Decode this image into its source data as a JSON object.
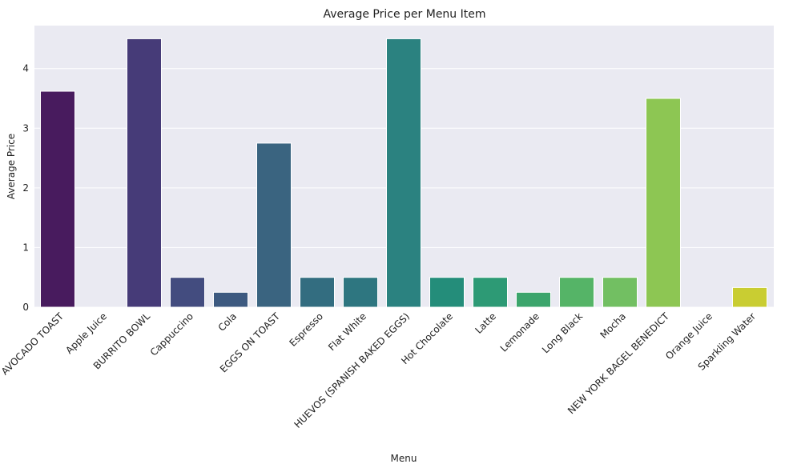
{
  "chart_data": {
    "type": "bar",
    "title": "Average Price per Menu Item",
    "xlabel": "Menu",
    "ylabel": "Average Price",
    "ylim": [
      0,
      4.72
    ],
    "yticks": [
      "0",
      "1",
      "2",
      "3",
      "4"
    ],
    "grid": true,
    "categories": [
      "AVOCADO TOAST",
      "Apple Juice",
      "BURRITO BOWL",
      "Cappuccino",
      "Cola",
      "EGGS ON TOAST",
      "Espresso",
      "Flat White",
      "HUEVOS (SPANISH BAKED EGGS)",
      "Hot Chocolate",
      "Latte",
      "Lemonade",
      "Long Black",
      "Mocha",
      "NEW YORK BAGEL BENEDICT",
      "Orange Juice",
      "Sparkling Water"
    ],
    "values": [
      3.62,
      0,
      4.5,
      0.5,
      0.25,
      2.75,
      0.5,
      0.5,
      4.5,
      0.5,
      0.5,
      0.25,
      0.5,
      0.5,
      3.5,
      0,
      0.33
    ],
    "colors": [
      "#481b5e",
      "#472d72",
      "#463b78",
      "#434c7f",
      "#3d5a80",
      "#3a6480",
      "#336d80",
      "#2e7680",
      "#2b8280",
      "#248d7a",
      "#2d9a75",
      "#3ca56c",
      "#55b467",
      "#72bf62",
      "#8dc653",
      "#b0cc3e",
      "#c9cd32"
    ],
    "plot_background": "#eaeaf2",
    "grid_color": "#ffffff"
  }
}
